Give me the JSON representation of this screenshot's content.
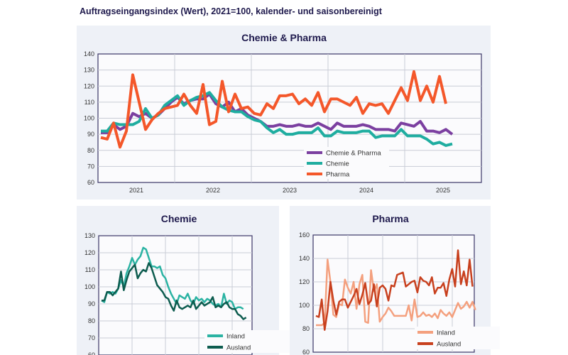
{
  "title": "Auftragseingangsindex (Wert), 2021=100, kalender- und saisonbereinigt",
  "chart_data": [
    {
      "type": "line",
      "title": "Chemie & Pharma",
      "x_start": "2021-01",
      "frequency": "monthly",
      "x_tick_labels": [
        "2021",
        "2022",
        "2023",
        "2024",
        "2025"
      ],
      "ylim": [
        60,
        140
      ],
      "yticks": [
        60,
        70,
        80,
        90,
        100,
        110,
        120,
        130,
        140
      ],
      "grid": true,
      "legend_position": "bottom-center",
      "series": [
        {
          "name": "Chemie & Pharma",
          "color": "#7b3fa0",
          "values": [
            91,
            91,
            96,
            93,
            95,
            103,
            101,
            103,
            100,
            102,
            106,
            110,
            113,
            109,
            111,
            112,
            112,
            115,
            109,
            107,
            110,
            104,
            106,
            102,
            100,
            98,
            95,
            95,
            96,
            95,
            95,
            96,
            95,
            95,
            97,
            95,
            93,
            97,
            95,
            95,
            95,
            96,
            95,
            93,
            93,
            93,
            92,
            97,
            96,
            95,
            98,
            92,
            92,
            91,
            93,
            90
          ]
        },
        {
          "name": "Chemie",
          "color": "#1fada0",
          "values": [
            92,
            92,
            97,
            96,
            96,
            96,
            98,
            106,
            100,
            102,
            108,
            111,
            114,
            108,
            111,
            113,
            114,
            116,
            111,
            107,
            105,
            104,
            104,
            101,
            99,
            98,
            94,
            91,
            93,
            90,
            90,
            91,
            91,
            91,
            94,
            89,
            89,
            92,
            91,
            91,
            91,
            92,
            92,
            88,
            89,
            89,
            89,
            93,
            89,
            89,
            89,
            87,
            84,
            85,
            83,
            84
          ]
        },
        {
          "name": "Pharma",
          "color": "#f4572a",
          "values": [
            88,
            87,
            97,
            82,
            92,
            127,
            110,
            93,
            99,
            103,
            106,
            107,
            108,
            115,
            108,
            103,
            121,
            96,
            98,
            123,
            104,
            115,
            106,
            107,
            103,
            102,
            109,
            106,
            114,
            114,
            115,
            109,
            112,
            108,
            116,
            104,
            112,
            112,
            110,
            108,
            113,
            103,
            109,
            108,
            109,
            103,
            111,
            119,
            111,
            129,
            111,
            120,
            110,
            126,
            109
          ]
        }
      ]
    },
    {
      "type": "line",
      "title": "Chemie",
      "x_start": "2021-01",
      "frequency": "monthly",
      "ylim": [
        60,
        130
      ],
      "yticks": [
        60,
        70,
        80,
        90,
        100,
        110,
        120,
        130
      ],
      "grid": true,
      "legend_position": "bottom-right",
      "series": [
        {
          "name": "Inland",
          "color": "#2bb3a3",
          "values": [
            92,
            91,
            97,
            96,
            97,
            96,
            99,
            104,
            100,
            108,
            112,
            117,
            113,
            116,
            118,
            123,
            122,
            117,
            112,
            112,
            111,
            112,
            107,
            105,
            100,
            96,
            93,
            90,
            95,
            94,
            93,
            96,
            92,
            90,
            94,
            92,
            93,
            91,
            93,
            92,
            90,
            89,
            90,
            88,
            96,
            90,
            92,
            91,
            87,
            88,
            88,
            87
          ]
        },
        {
          "name": "Ausland",
          "color": "#0d5c4f",
          "values": [
            92,
            92,
            97,
            97,
            95,
            97,
            99,
            109,
            98,
            104,
            109,
            111,
            113,
            105,
            108,
            110,
            109,
            114,
            111,
            106,
            101,
            99,
            97,
            94,
            93,
            89,
            86,
            92,
            88,
            87,
            88,
            89,
            88,
            92,
            87,
            89,
            91,
            89,
            90,
            91,
            94,
            88,
            89,
            88,
            90,
            91,
            88,
            87,
            87,
            84,
            83,
            81,
            82
          ]
        }
      ]
    },
    {
      "type": "line",
      "title": "Pharma",
      "x_start": "2021-01",
      "frequency": "monthly",
      "ylim": [
        60,
        160
      ],
      "yticks": [
        60,
        80,
        100,
        120,
        140,
        160
      ],
      "grid": true,
      "legend_position": "bottom-right",
      "series": [
        {
          "name": "Inland",
          "color": "#f4a07e",
          "values": [
            83,
            83,
            83,
            85,
            139,
            120,
            92,
            90,
            101,
            100,
            122,
            115,
            110,
            120,
            97,
            118,
            126,
            86,
            85,
            130,
            112,
            118,
            86,
            90,
            93,
            98,
            95,
            91,
            91,
            91,
            91,
            91,
            100,
            87,
            105,
            90,
            91,
            94,
            91,
            92,
            90,
            93,
            89,
            96,
            93,
            91,
            94,
            90,
            96,
            102,
            97,
            99,
            103,
            98,
            103,
            96
          ]
        },
        {
          "name": "Ausland",
          "color": "#c8401e",
          "values": [
            91,
            90,
            105,
            79,
            95,
            120,
            104,
            92,
            103,
            105,
            105,
            98,
            103,
            108,
            114,
            101,
            109,
            119,
            101,
            104,
            118,
            99,
            115,
            117,
            114,
            104,
            117,
            116,
            126,
            127,
            128,
            116,
            118,
            120,
            121,
            111,
            124,
            121,
            120,
            117,
            124,
            110,
            115,
            115,
            119,
            108,
            122,
            131,
            116,
            147,
            118,
            129,
            117,
            139,
            116
          ]
        }
      ]
    }
  ]
}
